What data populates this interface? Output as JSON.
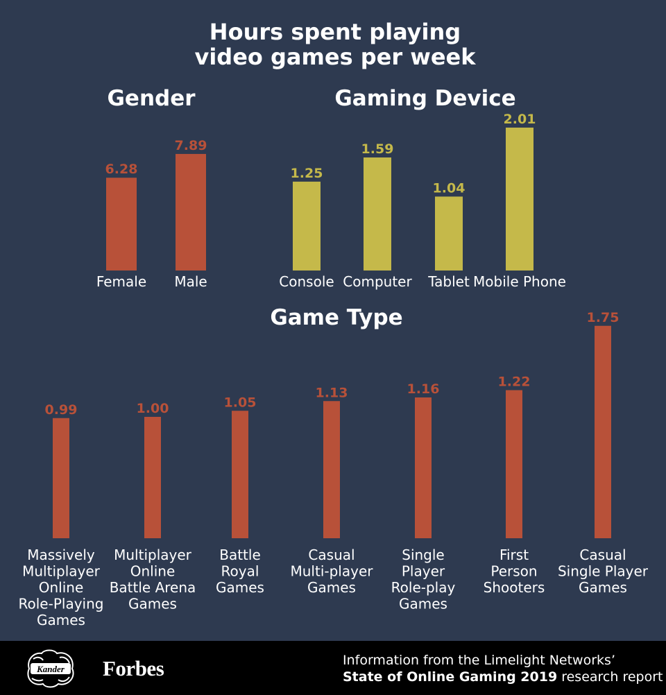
{
  "title_lines": [
    "Hours spent playing",
    "video games per week"
  ],
  "colors": {
    "background": "#2e3a50",
    "orange": "#b85139",
    "yellow": "#c5b94a",
    "footer": "#000000"
  },
  "chart_data": [
    {
      "type": "bar",
      "title": "Gender",
      "categories": [
        "Female",
        "Male"
      ],
      "values": [
        6.28,
        7.89
      ],
      "value_labels": [
        "6.28",
        "7.89"
      ],
      "unit": "hours per week",
      "color": "#b85139"
    },
    {
      "type": "bar",
      "title": "Gaming Device",
      "categories": [
        "Console",
        "Computer",
        "Tablet",
        "Mobile Phone"
      ],
      "values": [
        1.25,
        1.59,
        1.04,
        2.01
      ],
      "value_labels": [
        "1.25",
        "1.59",
        "1.04",
        "2.01"
      ],
      "unit": "hours per week",
      "color": "#c5b94a"
    },
    {
      "type": "bar",
      "title": "Game Type",
      "categories": [
        [
          "Massively",
          "Multiplayer",
          "Online",
          "Role-Playing",
          "Games"
        ],
        [
          "Multiplayer",
          "Online",
          "Battle Arena",
          "Games"
        ],
        [
          "Battle",
          "Royal",
          "Games"
        ],
        [
          "Casual",
          "Multi-player",
          "Games"
        ],
        [
          "Single",
          "Player",
          "Role-play",
          "Games"
        ],
        [
          "First",
          "Person",
          "Shooters"
        ],
        [
          "Casual",
          "Single Player",
          "Games"
        ]
      ],
      "values": [
        0.99,
        1.0,
        1.05,
        1.13,
        1.16,
        1.22,
        1.75
      ],
      "value_labels": [
        "0.99",
        "1.00",
        "1.05",
        "1.13",
        "1.16",
        "1.22",
        "1.75"
      ],
      "unit": "hours per week",
      "color": "#b85139"
    }
  ],
  "footer": {
    "logo_text": "Kander",
    "brand": "Forbes",
    "source_line1": "Information from the Limelight Networks’",
    "source_line2_bold": "State of Online Gaming 2019",
    "source_line2_rest": " research report"
  }
}
